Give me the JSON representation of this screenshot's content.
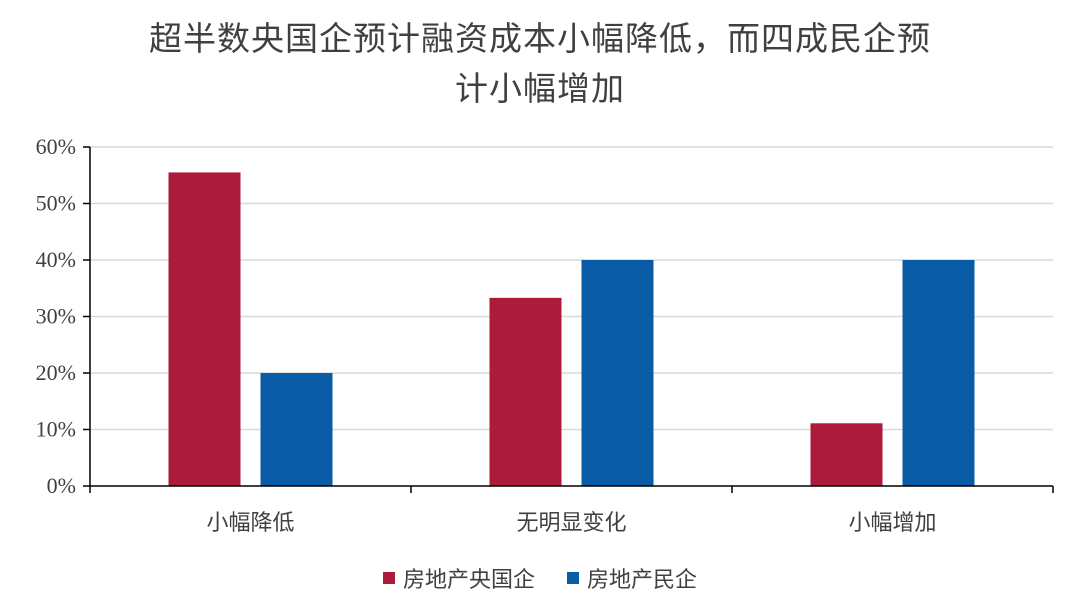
{
  "chart_data": {
    "type": "bar",
    "title_lines": [
      "超半数央国企预计融资成本小幅降低，而四成民企预",
      "计小幅增加"
    ],
    "categories": [
      "小幅降低",
      "无明显变化",
      "小幅增加"
    ],
    "series": [
      {
        "name": "房地产央国企",
        "values": [
          55.5,
          33.3,
          11.1
        ],
        "color": "#AC1A3C"
      },
      {
        "name": "房地产民企",
        "values": [
          20,
          40,
          40
        ],
        "color": "#0A5BA5"
      }
    ],
    "ylim": [
      0,
      60
    ],
    "yticks": [
      "0%",
      "10%",
      "20%",
      "30%",
      "40%",
      "50%",
      "60%"
    ],
    "grid": true,
    "legend_position": "bottom"
  }
}
